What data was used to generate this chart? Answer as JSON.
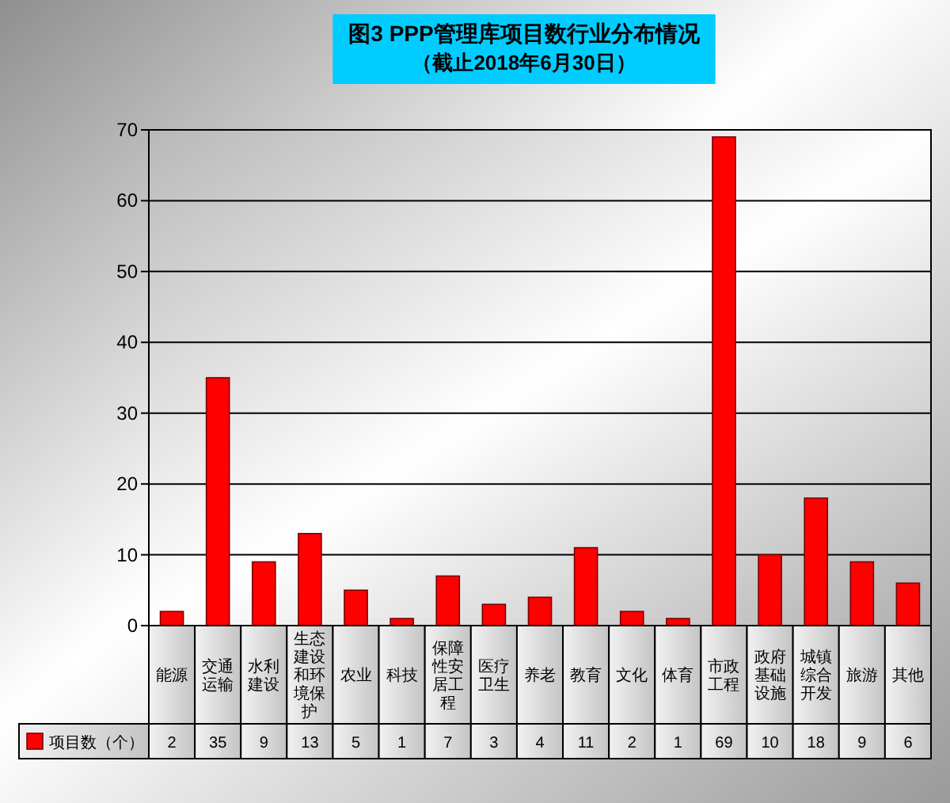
{
  "chart_data": {
    "type": "bar",
    "title": "图3 PPP管理库项目数行业分布情况",
    "subtitle": "（截止2018年6月30日）",
    "categories": [
      "能源",
      "交通运输",
      "水利建设",
      "生态建设和环境保护",
      "农业",
      "科技",
      "保障性安居工程",
      "医疗卫生",
      "养老",
      "教育",
      "文化",
      "体育",
      "市政工程",
      "政府基础设施",
      "城镇综合开发",
      "旅游",
      "其他"
    ],
    "series": [
      {
        "name": "项目数（个）",
        "color": "#ff0000",
        "values": [
          2,
          35,
          9,
          13,
          5,
          1,
          7,
          3,
          4,
          11,
          2,
          1,
          69,
          10,
          18,
          9,
          6
        ]
      }
    ],
    "ylim": [
      0,
      70
    ],
    "yticks": [
      0,
      10,
      20,
      30,
      40,
      50,
      60,
      70
    ],
    "grid": "y",
    "data_labels": true,
    "legend": "bottom left"
  }
}
